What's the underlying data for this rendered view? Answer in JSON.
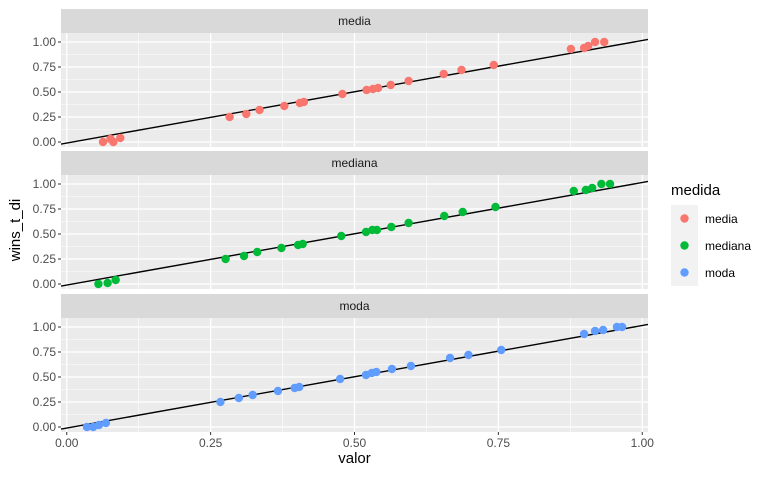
{
  "chart_data": {
    "type": "scatter",
    "facet_by": "medida",
    "xlabel": "valor",
    "ylabel": "wins_t_di",
    "xlim": [
      -0.01,
      1.01
    ],
    "ylim": [
      -0.05,
      1.09
    ],
    "x_ticks": [
      0.0,
      0.25,
      0.5,
      0.75,
      1.0
    ],
    "x_tick_labels": [
      "0.00",
      "0.25",
      "0.50",
      "0.75",
      "1.00"
    ],
    "y_ticks": [
      0.0,
      0.25,
      0.5,
      0.75,
      1.0
    ],
    "y_tick_labels": [
      "0.00",
      "0.25",
      "0.50",
      "0.75",
      "1.00"
    ],
    "grid": true,
    "legend": {
      "title": "medida",
      "placement": "right",
      "entries": [
        {
          "label": "media",
          "color": "#F8766D"
        },
        {
          "label": "mediana",
          "color": "#00BA38"
        },
        {
          "label": "moda",
          "color": "#619CFF"
        }
      ]
    },
    "reference_line": {
      "slope": 1.025,
      "intercept": -0.01
    },
    "panels": [
      {
        "strip_label": "media",
        "color": "#F8766D",
        "points": [
          [
            0.063,
            0.0
          ],
          [
            0.076,
            0.03
          ],
          [
            0.081,
            0.0
          ],
          [
            0.093,
            0.04
          ],
          [
            0.283,
            0.25
          ],
          [
            0.312,
            0.28
          ],
          [
            0.335,
            0.32
          ],
          [
            0.378,
            0.36
          ],
          [
            0.405,
            0.39
          ],
          [
            0.412,
            0.4
          ],
          [
            0.479,
            0.48
          ],
          [
            0.521,
            0.52
          ],
          [
            0.532,
            0.53
          ],
          [
            0.541,
            0.54
          ],
          [
            0.563,
            0.57
          ],
          [
            0.594,
            0.61
          ],
          [
            0.655,
            0.68
          ],
          [
            0.686,
            0.72
          ],
          [
            0.742,
            0.77
          ],
          [
            0.876,
            0.93
          ],
          [
            0.899,
            0.94
          ],
          [
            0.906,
            0.96
          ],
          [
            0.918,
            1.0
          ],
          [
            0.934,
            1.0
          ]
        ]
      },
      {
        "strip_label": "mediana",
        "color": "#00BA38",
        "points": [
          [
            0.055,
            0.0
          ],
          [
            0.071,
            0.01
          ],
          [
            0.085,
            0.04
          ],
          [
            0.276,
            0.25
          ],
          [
            0.308,
            0.28
          ],
          [
            0.331,
            0.32
          ],
          [
            0.373,
            0.36
          ],
          [
            0.402,
            0.39
          ],
          [
            0.41,
            0.4
          ],
          [
            0.477,
            0.48
          ],
          [
            0.52,
            0.52
          ],
          [
            0.531,
            0.54
          ],
          [
            0.539,
            0.54
          ],
          [
            0.564,
            0.57
          ],
          [
            0.594,
            0.61
          ],
          [
            0.656,
            0.68
          ],
          [
            0.688,
            0.72
          ],
          [
            0.745,
            0.77
          ],
          [
            0.881,
            0.93
          ],
          [
            0.902,
            0.94
          ],
          [
            0.913,
            0.96
          ],
          [
            0.929,
            1.0
          ],
          [
            0.944,
            1.0
          ]
        ]
      },
      {
        "strip_label": "moda",
        "color": "#619CFF",
        "points": [
          [
            0.035,
            0.0
          ],
          [
            0.046,
            0.0
          ],
          [
            0.056,
            0.02
          ],
          [
            0.068,
            0.04
          ],
          [
            0.267,
            0.25
          ],
          [
            0.299,
            0.29
          ],
          [
            0.323,
            0.32
          ],
          [
            0.367,
            0.36
          ],
          [
            0.396,
            0.39
          ],
          [
            0.404,
            0.4
          ],
          [
            0.475,
            0.48
          ],
          [
            0.52,
            0.52
          ],
          [
            0.53,
            0.54
          ],
          [
            0.538,
            0.55
          ],
          [
            0.565,
            0.58
          ],
          [
            0.598,
            0.61
          ],
          [
            0.666,
            0.69
          ],
          [
            0.698,
            0.72
          ],
          [
            0.755,
            0.77
          ],
          [
            0.899,
            0.93
          ],
          [
            0.918,
            0.96
          ],
          [
            0.932,
            0.97
          ],
          [
            0.956,
            1.0
          ],
          [
            0.965,
            1.0
          ]
        ]
      }
    ]
  }
}
